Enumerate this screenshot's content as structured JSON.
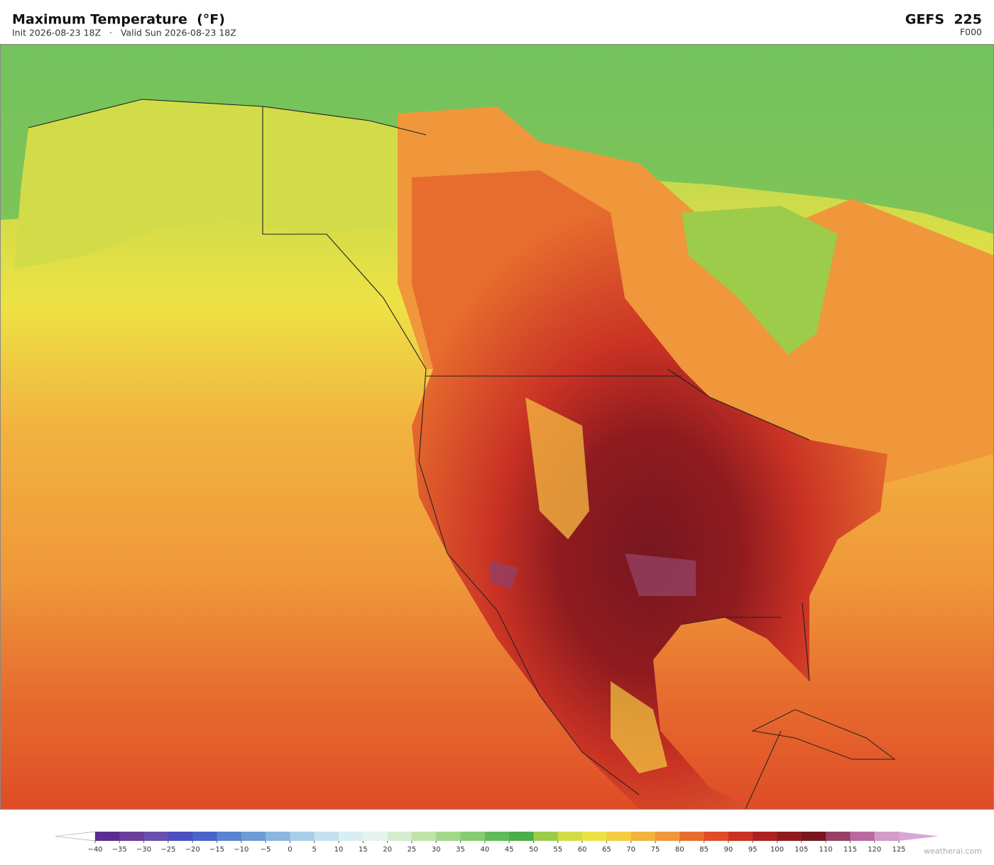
{
  "header": {
    "title": "Maximum Temperature  (°F)",
    "subtitle": "Init 2026-08-23 18Z   ·   Valid Sun 2026-08-23 18Z",
    "model": "GEFS  225",
    "forecast_hour": "F000"
  },
  "colorbar": {
    "ticks": [
      {
        "value": -40,
        "label": "−40"
      },
      {
        "value": -35,
        "label": "−35"
      },
      {
        "value": -30,
        "label": "−30"
      },
      {
        "value": -25,
        "label": "−25"
      },
      {
        "value": -20,
        "label": "−20"
      },
      {
        "value": -15,
        "label": "−15"
      },
      {
        "value": -10,
        "label": "−10"
      },
      {
        "value": -5,
        "label": "−5"
      },
      0,
      5,
      10,
      15,
      20,
      25,
      30,
      35,
      40,
      45,
      50,
      55,
      60,
      65,
      70,
      75,
      80,
      85,
      90,
      95,
      100,
      105,
      110,
      115,
      120,
      125
    ],
    "colors": [
      "#5b2d8e",
      "#6a3d9a",
      "#6b4fb0",
      "#4b4fc0",
      "#4a64c8",
      "#5a84d0",
      "#6f9bd6",
      "#8ab6df",
      "#a9cfe8",
      "#c4e1ef",
      "#d9eef3",
      "#e6f4ee",
      "#d4ecd0",
      "#bfe3a8",
      "#a3d88a",
      "#86cc72",
      "#5fbb5a",
      "#4cad4c",
      "#9ccc4a",
      "#d2dc48",
      "#ede245",
      "#f4cd42",
      "#f2b33f",
      "#ef973a",
      "#e76d2e",
      "#df4c27",
      "#c93224",
      "#ad2221",
      "#901b1f",
      "#771720",
      "#954064",
      "#b86aa0",
      "#d19cc8"
    ],
    "under_color": "#ffffff",
    "over_color": "#d9a6d6"
  },
  "watermark": "weatherai.com"
}
